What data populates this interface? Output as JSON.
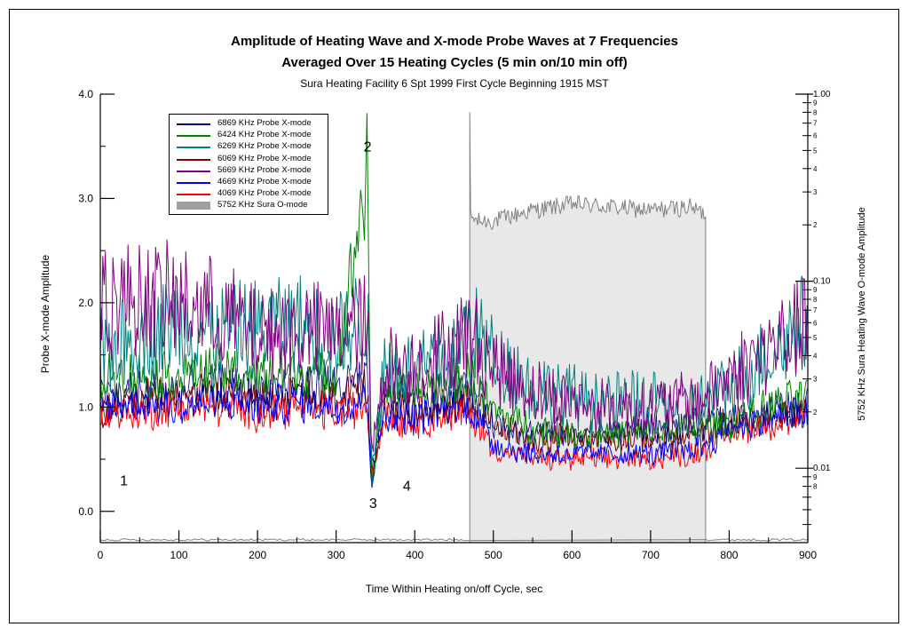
{
  "title": "Amplitude of Heating Wave and X-mode Probe Waves at 7 Frequencies",
  "subtitle": "Averaged Over 15 Heating Cycles (5 min on/10 min off)",
  "caption": "Sura Heating Facility 6 Spt 1999 First Cycle Beginning 1915 MST",
  "chart_data": {
    "type": "line",
    "xlabel": "Time Within Heating on/off Cycle, sec",
    "ylabel": "Probe X-mode Amplitude",
    "y2label": "5752 KHz Sura Heating Wave O-mode Amplitude",
    "xlim": [
      0,
      900
    ],
    "ylim": [
      -0.3,
      4.0
    ],
    "y2lim": [
      0.004,
      1.0
    ],
    "y2scale": "log",
    "x_ticks": [
      "0",
      "100",
      "200",
      "300",
      "400",
      "500",
      "600",
      "700",
      "800",
      "900"
    ],
    "y_ticks": [
      "0.0",
      "1.0",
      "2.0",
      "3.0",
      "4.0"
    ],
    "y2_major_ticks": [
      "0.01",
      "0.10",
      "1.00"
    ],
    "y2_minor_labels": [
      "2",
      "3",
      "4",
      "5",
      "6",
      "7",
      "8",
      "9"
    ],
    "legend_placement": "top-left",
    "grid": false,
    "heating_on_interval": [
      470,
      770
    ],
    "annotations": [
      {
        "text": "1",
        "x": 30,
        "y": 0.25
      },
      {
        "text": "2",
        "x": 340,
        "y": 3.45
      },
      {
        "text": "3",
        "x": 347,
        "y": 0.03
      },
      {
        "text": "4",
        "x": 390,
        "y": 0.2
      }
    ],
    "series": [
      {
        "name": "6869 KHz Probe X-mode",
        "color": "#000080",
        "axis": "left",
        "x": [
          0,
          50,
          100,
          150,
          200,
          250,
          300,
          340,
          345,
          360,
          400,
          450,
          470,
          480,
          500,
          550,
          600,
          650,
          700,
          750,
          770,
          800,
          850,
          900
        ],
        "values": [
          1.1,
          1.15,
          1.15,
          1.2,
          1.15,
          1.2,
          1.2,
          1.25,
          0.3,
          1.1,
          1.05,
          1.15,
          1.2,
          1.1,
          0.85,
          0.75,
          0.75,
          0.75,
          0.8,
          0.8,
          0.85,
          0.9,
          0.95,
          1.0
        ]
      },
      {
        "name": "6424 KHz Probe X-mode",
        "color": "#008000",
        "axis": "left",
        "x": [
          0,
          50,
          100,
          150,
          200,
          250,
          300,
          340,
          345,
          360,
          400,
          450,
          470,
          480,
          500,
          550,
          600,
          650,
          700,
          750,
          770,
          800,
          850,
          900
        ],
        "values": [
          1.3,
          1.3,
          1.3,
          1.35,
          1.3,
          1.35,
          1.3,
          3.3,
          0.2,
          1.2,
          1.15,
          1.25,
          1.3,
          1.2,
          0.95,
          0.8,
          0.75,
          0.75,
          0.75,
          0.8,
          0.8,
          0.85,
          1.0,
          1.1
        ]
      },
      {
        "name": "6269 KHz Probe X-mode",
        "color": "#008080",
        "axis": "left",
        "x": [
          0,
          50,
          100,
          150,
          200,
          250,
          300,
          340,
          345,
          360,
          400,
          450,
          470,
          480,
          500,
          550,
          600,
          650,
          700,
          750,
          770,
          800,
          850,
          900
        ],
        "values": [
          1.5,
          1.7,
          1.8,
          1.7,
          1.75,
          1.8,
          1.65,
          1.9,
          0.4,
          1.4,
          1.35,
          1.5,
          1.8,
          1.7,
          1.5,
          1.2,
          1.1,
          1.05,
          1.05,
          1.0,
          1.05,
          1.2,
          1.5,
          1.85
        ]
      },
      {
        "name": "6069 KHz Probe X-mode",
        "color": "#800000",
        "axis": "left",
        "x": [
          0,
          50,
          100,
          150,
          200,
          250,
          300,
          340,
          345,
          360,
          400,
          450,
          470,
          480,
          500,
          550,
          600,
          650,
          700,
          750,
          770,
          800,
          850,
          900
        ],
        "values": [
          1.0,
          1.05,
          1.1,
          1.1,
          1.05,
          1.1,
          1.05,
          1.15,
          0.3,
          1.0,
          0.95,
          1.05,
          1.1,
          1.0,
          0.8,
          0.7,
          0.7,
          0.7,
          0.7,
          0.7,
          0.75,
          0.85,
          0.9,
          0.95
        ]
      },
      {
        "name": "5669 KHz Probe X-mode",
        "color": "#800080",
        "axis": "left",
        "x": [
          0,
          50,
          100,
          150,
          200,
          250,
          300,
          340,
          345,
          360,
          400,
          450,
          470,
          480,
          500,
          550,
          600,
          650,
          700,
          750,
          770,
          800,
          850,
          900
        ],
        "values": [
          2.0,
          2.05,
          2.0,
          1.9,
          1.7,
          1.75,
          1.7,
          1.8,
          0.5,
          1.4,
          1.4,
          1.6,
          1.7,
          1.6,
          1.4,
          1.15,
          1.05,
          1.0,
          1.0,
          1.05,
          1.1,
          1.3,
          1.55,
          1.8
        ]
      },
      {
        "name": "4669 KHz Probe X-mode",
        "color": "#0000ff",
        "axis": "left",
        "x": [
          0,
          50,
          100,
          150,
          200,
          250,
          300,
          340,
          345,
          360,
          400,
          450,
          470,
          480,
          500,
          550,
          600,
          650,
          700,
          750,
          770,
          800,
          850,
          900
        ],
        "values": [
          1.0,
          1.05,
          1.0,
          1.05,
          1.0,
          1.05,
          1.0,
          1.1,
          0.25,
          0.95,
          0.9,
          1.0,
          1.0,
          0.9,
          0.65,
          0.55,
          0.55,
          0.55,
          0.55,
          0.6,
          0.65,
          0.8,
          0.9,
          0.95
        ]
      },
      {
        "name": "4069 KHz Probe X-mode",
        "color": "#ff0000",
        "axis": "left",
        "x": [
          0,
          50,
          100,
          150,
          200,
          250,
          300,
          340,
          345,
          360,
          400,
          450,
          470,
          480,
          500,
          550,
          600,
          650,
          700,
          750,
          770,
          800,
          850,
          900
        ],
        "values": [
          0.95,
          0.95,
          1.0,
          1.0,
          0.95,
          1.0,
          0.95,
          1.0,
          0.3,
          0.9,
          0.85,
          0.95,
          0.95,
          0.85,
          0.6,
          0.5,
          0.5,
          0.5,
          0.5,
          0.55,
          0.6,
          0.75,
          0.85,
          0.9
        ]
      },
      {
        "name": "5752 KHz Sura O-mode",
        "color": "#808080",
        "fill": "#e8e8e8",
        "axis": "right",
        "kind": "area",
        "x": [
          0,
          469,
          470,
          471,
          480,
          500,
          550,
          600,
          650,
          700,
          750,
          769,
          770,
          771,
          900
        ],
        "values": [
          0.005,
          0.005,
          0.8,
          0.22,
          0.21,
          0.21,
          0.24,
          0.26,
          0.25,
          0.24,
          0.25,
          0.23,
          0.005,
          0.005,
          0.005
        ]
      }
    ]
  }
}
